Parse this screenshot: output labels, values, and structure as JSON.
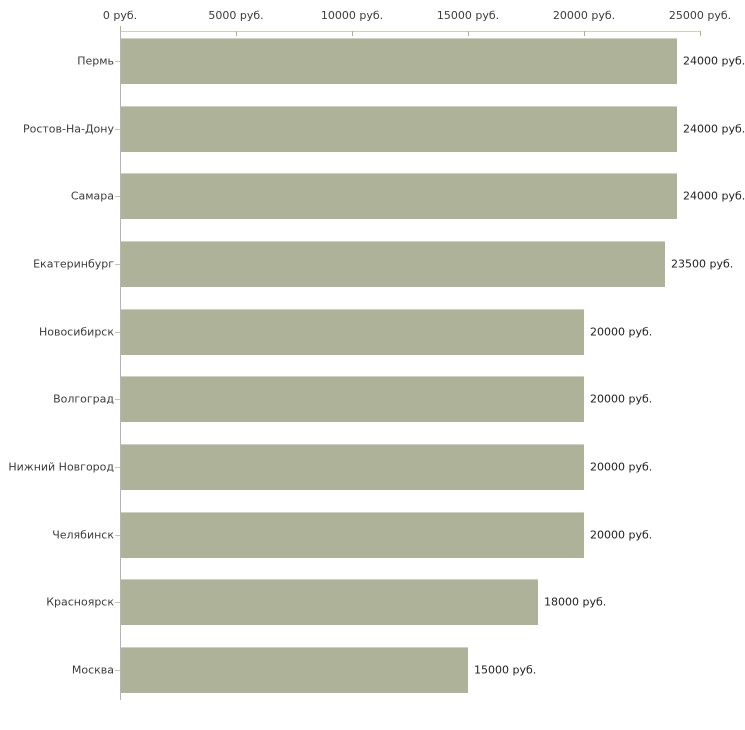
{
  "chart_data": {
    "type": "bar",
    "orientation": "horizontal",
    "title": "",
    "unit": "руб.",
    "categories": [
      "Пермь",
      "Ростов-На-Дону",
      "Самара",
      "Екатеринбург",
      "Новосибирск",
      "Волгоград",
      "Нижний Новгород",
      "Челябинск",
      "Красноярск",
      "Москва"
    ],
    "values": [
      24000,
      24000,
      24000,
      23500,
      20000,
      20000,
      20000,
      20000,
      18000,
      15000
    ],
    "value_labels": [
      "24000 руб.",
      "24000 руб.",
      "24000 руб.",
      "23500 руб.",
      "20000 руб.",
      "20000 руб.",
      "20000 руб.",
      "20000 руб.",
      "18000 руб.",
      "15000 руб."
    ],
    "x_axis": {
      "position": "top",
      "min": 0,
      "max": 25000,
      "ticks": [
        0,
        5000,
        10000,
        15000,
        20000,
        25000
      ],
      "tick_labels": [
        "0 руб.",
        "5000 руб.",
        "10000 руб.",
        "15000 руб.",
        "20000 руб.",
        "25000 руб."
      ]
    },
    "legend": false,
    "grid": false,
    "colors": {
      "bar": "#adb298",
      "bar_top_edge": "#ced1c4",
      "x_axis_line": "#cfcfc3",
      "x_tick": "#b3b38b",
      "y_axis_line": "#b5b5b5",
      "y_tick": "#c8c8a8",
      "label_text": "#3c3c3c",
      "value_text": "#222222"
    }
  }
}
